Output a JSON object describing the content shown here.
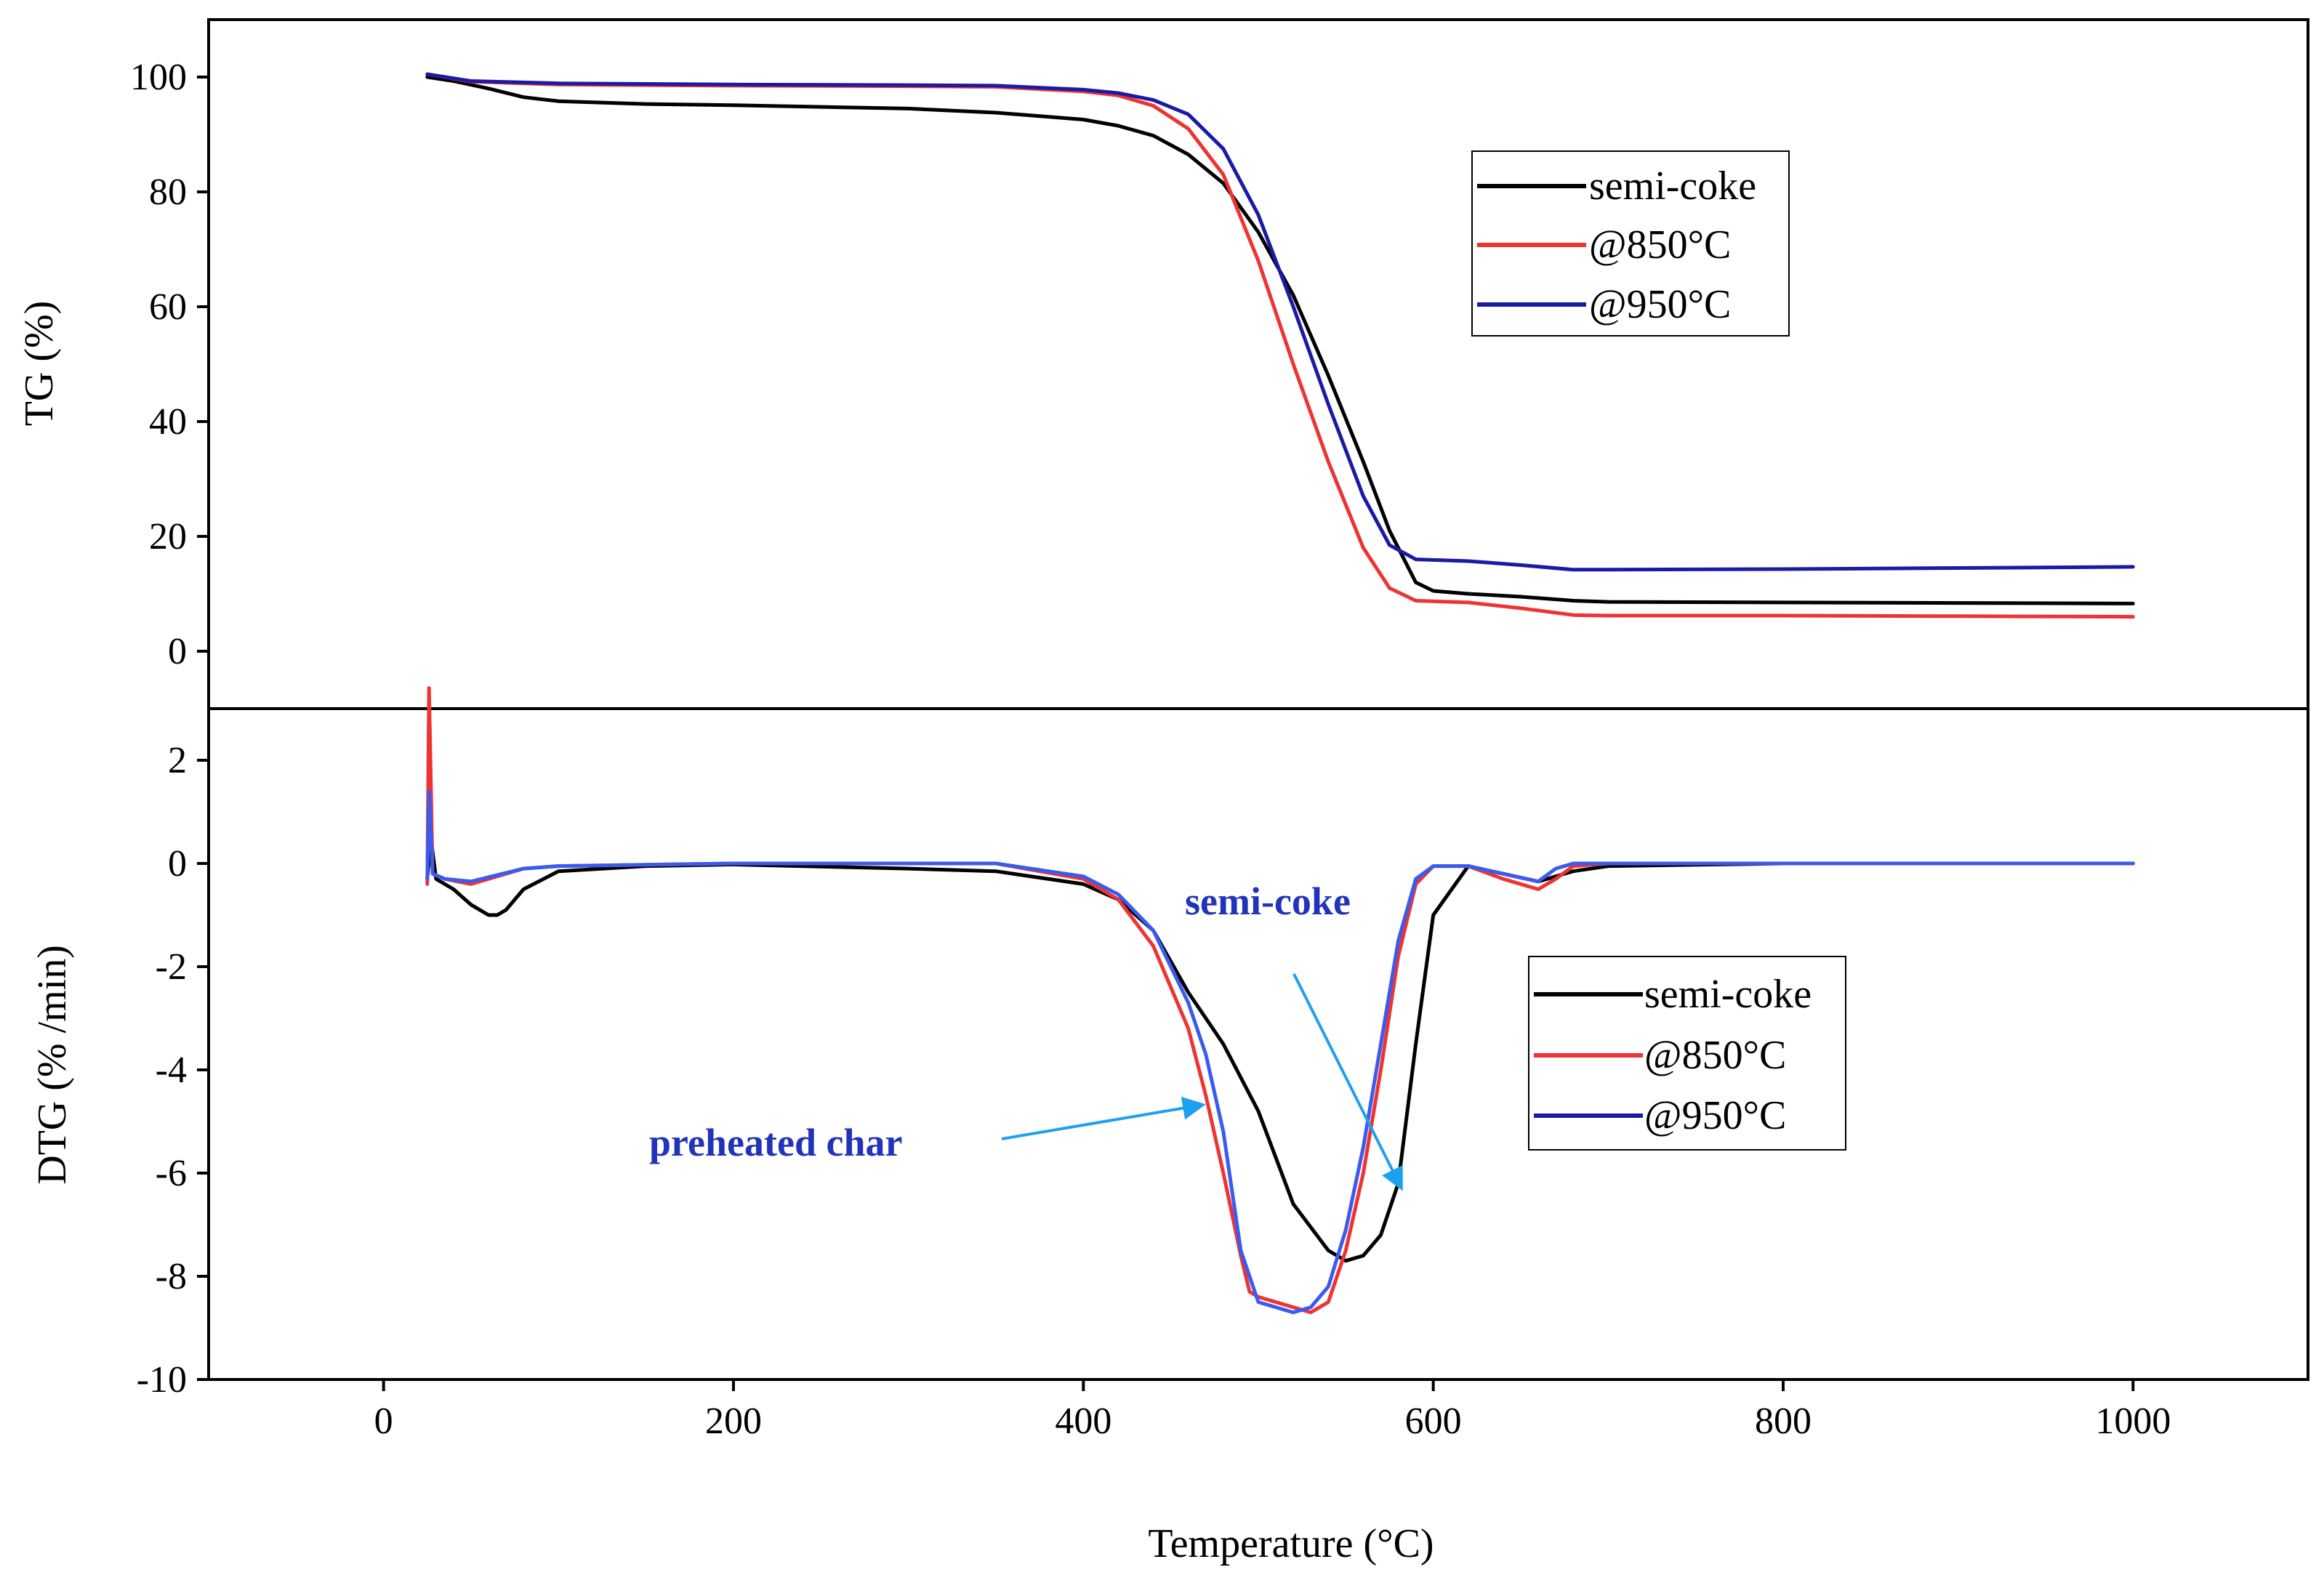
{
  "chart_data": [
    {
      "panel": "top",
      "type": "line",
      "ylabel": "TG (%)",
      "xlabel": "Temperature (°C)",
      "xlim": [
        -100,
        1100
      ],
      "ylim": [
        -10,
        110
      ],
      "yticks": [
        0,
        20,
        40,
        60,
        80,
        100
      ],
      "ytick_labels": [
        "0",
        "20",
        "40",
        "60",
        "80",
        "100"
      ],
      "legend": [
        "semi-coke",
        "@850°C",
        "@950°C"
      ],
      "legend_position": "upper-right",
      "series": [
        {
          "name": "semi-coke",
          "color": "#000000",
          "x": [
            25,
            40,
            60,
            80,
            100,
            150,
            200,
            300,
            350,
            400,
            420,
            440,
            460,
            480,
            500,
            520,
            540,
            560,
            575,
            590,
            600,
            620,
            650,
            680,
            700,
            800,
            900,
            1000
          ],
          "y": [
            100,
            99.3,
            98,
            96.5,
            95.8,
            95.3,
            95.1,
            94.5,
            93.8,
            92.6,
            91.5,
            89.8,
            86.5,
            81.5,
            73,
            62,
            48,
            33,
            21,
            12,
            10.5,
            10,
            9.5,
            8.8,
            8.6,
            8.5,
            8.4,
            8.3
          ]
        },
        {
          "name": "@850°C",
          "color": "#ee3333",
          "x": [
            25,
            50,
            100,
            200,
            300,
            350,
            400,
            420,
            440,
            460,
            480,
            500,
            520,
            540,
            560,
            575,
            590,
            620,
            650,
            680,
            700,
            800,
            900,
            1000
          ],
          "y": [
            100.5,
            99.2,
            98.7,
            98.5,
            98.4,
            98.3,
            97.5,
            96.8,
            95,
            91,
            83,
            68,
            50,
            33,
            18,
            11,
            8.8,
            8.5,
            7.5,
            6.3,
            6.2,
            6.2,
            6.1,
            6.0
          ]
        },
        {
          "name": "@950°C",
          "color": "#1a1aa6",
          "x": [
            25,
            50,
            100,
            200,
            300,
            350,
            400,
            420,
            440,
            460,
            480,
            500,
            520,
            540,
            560,
            575,
            590,
            620,
            650,
            680,
            700,
            800,
            900,
            1000
          ],
          "y": [
            100.5,
            99.3,
            98.9,
            98.7,
            98.6,
            98.5,
            97.8,
            97.2,
            96,
            93.5,
            87.5,
            76,
            60,
            43,
            27,
            18.5,
            16,
            15.7,
            15,
            14.2,
            14.2,
            14.3,
            14.5,
            14.7
          ]
        }
      ]
    },
    {
      "panel": "bottom",
      "type": "line",
      "ylabel": "DTG (% /min)",
      "xlabel": "Temperature (°C)",
      "xlim": [
        -100,
        1100
      ],
      "ylim": [
        -10,
        3
      ],
      "xticks": [
        0,
        200,
        400,
        600,
        800,
        1000
      ],
      "xtick_labels": [
        "0",
        "200",
        "400",
        "600",
        "800",
        "1000"
      ],
      "yticks": [
        -10,
        -8,
        -6,
        -4,
        -2,
        0,
        2
      ],
      "ytick_labels": [
        "-10",
        "-8",
        "-6",
        "-4",
        "-2",
        "0",
        "2"
      ],
      "legend": [
        "semi-coke",
        "@850°C",
        "@950°C"
      ],
      "legend_position": "right",
      "annotations": [
        "semi-coke",
        "preheated char"
      ],
      "series": [
        {
          "name": "semi-coke",
          "color": "#000000",
          "x": [
            25,
            27,
            30,
            40,
            50,
            60,
            65,
            70,
            80,
            100,
            150,
            200,
            300,
            350,
            400,
            420,
            440,
            460,
            470,
            480,
            500,
            520,
            540,
            550,
            560,
            570,
            580,
            590,
            600,
            620,
            640,
            660,
            680,
            700,
            800,
            900,
            1000
          ],
          "y": [
            -0.3,
            0.5,
            -0.3,
            -0.5,
            -0.8,
            -1.0,
            -1.0,
            -0.9,
            -0.5,
            -0.15,
            -0.05,
            -0.02,
            -0.1,
            -0.15,
            -0.4,
            -0.7,
            -1.3,
            -2.5,
            -3.0,
            -3.5,
            -4.8,
            -6.6,
            -7.5,
            -7.7,
            -7.6,
            -7.2,
            -6.2,
            -3.5,
            -1.0,
            -0.05,
            -0.2,
            -0.35,
            -0.15,
            -0.05,
            0,
            0,
            0
          ]
        },
        {
          "name": "@850°C",
          "color": "#ee3333",
          "x": [
            25,
            26,
            28,
            35,
            50,
            80,
            100,
            200,
            300,
            350,
            400,
            420,
            440,
            460,
            470,
            480,
            490,
            495,
            500,
            510,
            520,
            530,
            540,
            550,
            560,
            570,
            580,
            590,
            600,
            620,
            640,
            660,
            670,
            680,
            700,
            800,
            900,
            1000
          ],
          "y": [
            -0.4,
            3.4,
            -0.2,
            -0.3,
            -0.4,
            -0.1,
            -0.05,
            0,
            0,
            0,
            -0.3,
            -0.7,
            -1.6,
            -3.2,
            -4.5,
            -6.0,
            -7.6,
            -8.3,
            -8.4,
            -8.5,
            -8.6,
            -8.7,
            -8.5,
            -7.5,
            -6.0,
            -4.0,
            -1.8,
            -0.4,
            -0.05,
            -0.05,
            -0.3,
            -0.5,
            -0.3,
            -0.05,
            0,
            0,
            0,
            0
          ]
        },
        {
          "name": "@950°C",
          "color": "#3a5bef",
          "x": [
            25,
            26,
            28,
            35,
            50,
            80,
            100,
            200,
            300,
            350,
            400,
            420,
            440,
            460,
            470,
            480,
            490,
            500,
            510,
            520,
            530,
            540,
            550,
            560,
            570,
            580,
            590,
            600,
            620,
            640,
            660,
            670,
            680,
            700,
            800,
            900,
            1000
          ],
          "y": [
            -0.3,
            1.4,
            -0.2,
            -0.3,
            -0.35,
            -0.1,
            -0.05,
            0,
            0,
            0,
            -0.25,
            -0.6,
            -1.3,
            -2.7,
            -3.7,
            -5.2,
            -7.5,
            -8.5,
            -8.6,
            -8.7,
            -8.6,
            -8.2,
            -7.1,
            -5.5,
            -3.5,
            -1.5,
            -0.3,
            -0.05,
            -0.05,
            -0.2,
            -0.35,
            -0.1,
            0,
            0,
            0,
            0,
            0
          ]
        }
      ]
    }
  ]
}
